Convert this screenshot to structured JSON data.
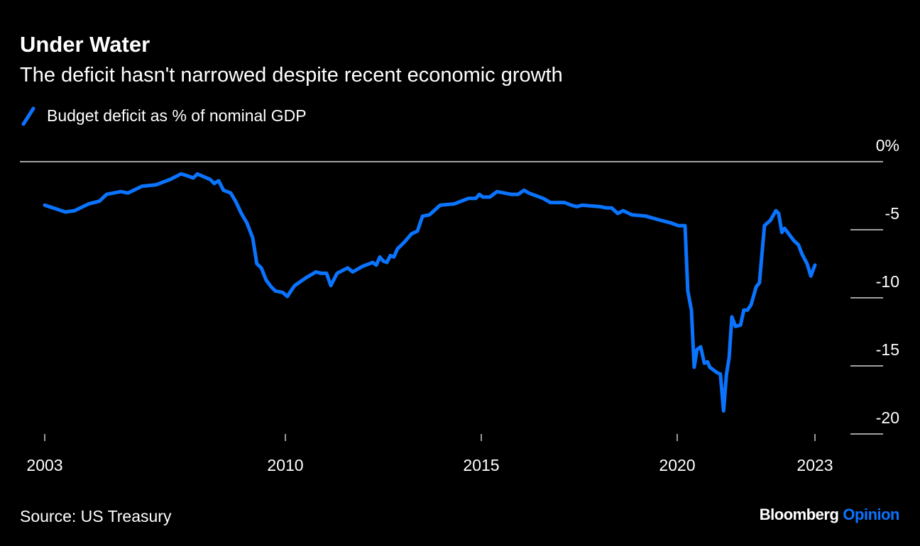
{
  "chart_data": {
    "type": "line",
    "title": "Under Water",
    "subtitle": "The deficit hasn't narrowed despite recent economic growth",
    "legend": [
      {
        "name": "Budget deficit as % of nominal GDP",
        "color": "#0a74ff"
      }
    ],
    "legend_placement": "top-left",
    "xlabel": "",
    "ylabel": "",
    "x_ticks": [
      2003,
      2010,
      2015,
      2020,
      2023
    ],
    "x_tick_labels": [
      "2003",
      "2010",
      "2015",
      "2020",
      "2023"
    ],
    "y_ticks": [
      0,
      -5,
      -10,
      -15,
      -20
    ],
    "y_tick_labels": [
      "0%",
      "-5",
      "-10",
      "-15",
      "-20"
    ],
    "ylim": [
      -20,
      0
    ],
    "xlim": [
      2003,
      2023
    ],
    "series": [
      {
        "name": "Budget deficit as % of nominal GDP",
        "color": "#0a74ff",
        "x": [
          2003.0,
          2003.25,
          2003.6,
          2003.87,
          2004.28,
          2004.59,
          2004.8,
          2005.21,
          2005.42,
          2005.83,
          2006.24,
          2006.65,
          2006.96,
          2007.11,
          2007.32,
          2007.44,
          2007.81,
          2007.93,
          2008.06,
          2008.2,
          2008.41,
          2008.55,
          2008.72,
          2008.88,
          2009.05,
          2009.17,
          2009.3,
          2009.44,
          2009.59,
          2009.71,
          2009.92,
          2010.05,
          2010.14,
          2010.24,
          2010.54,
          2010.78,
          2010.91,
          2011.05,
          2011.16,
          2011.32,
          2011.59,
          2011.72,
          2011.96,
          2012.23,
          2012.32,
          2012.41,
          2012.5,
          2012.59,
          2012.68,
          2012.77,
          2012.86,
          2013.04,
          2013.22,
          2013.37,
          2013.5,
          2013.68,
          2013.95,
          2014.31,
          2014.67,
          2014.86,
          2014.95,
          2015.04,
          2015.22,
          2015.4,
          2015.76,
          2015.94,
          2016.09,
          2016.21,
          2016.58,
          2016.76,
          2017.12,
          2017.3,
          2017.43,
          2017.57,
          2018.03,
          2018.21,
          2018.33,
          2018.48,
          2018.62,
          2018.84,
          2019.2,
          2019.57,
          2019.84,
          2020.02,
          2020.17,
          2020.23,
          2020.31,
          2020.37,
          2020.43,
          2020.51,
          2020.59,
          2020.66,
          2020.71,
          2020.87,
          2020.94,
          2021.01,
          2021.07,
          2021.13,
          2021.19,
          2021.27,
          2021.38,
          2021.45,
          2021.53,
          2021.61,
          2021.72,
          2021.79,
          2021.9,
          2022.03,
          2022.15,
          2022.21,
          2022.28,
          2022.34,
          2022.54,
          2022.64,
          2022.72,
          2022.83,
          2022.91,
          2023.0
        ],
        "values": [
          -3.2,
          -3.4,
          -3.7,
          -3.6,
          -3.1,
          -2.9,
          -2.4,
          -2.2,
          -2.3,
          -1.8,
          -1.7,
          -1.3,
          -0.9,
          -1.0,
          -1.2,
          -0.9,
          -1.3,
          -1.6,
          -1.4,
          -2.1,
          -2.3,
          -2.9,
          -3.8,
          -4.5,
          -5.6,
          -7.5,
          -7.8,
          -8.7,
          -9.2,
          -9.5,
          -9.6,
          -9.9,
          -9.5,
          -9.1,
          -8.5,
          -8.1,
          -8.2,
          -8.2,
          -9.1,
          -8.2,
          -7.8,
          -8.1,
          -7.7,
          -7.4,
          -7.6,
          -7.0,
          -7.3,
          -7.4,
          -6.9,
          -7.0,
          -6.4,
          -5.9,
          -5.3,
          -5.1,
          -4.0,
          -3.9,
          -3.2,
          -3.1,
          -2.7,
          -2.7,
          -2.4,
          -2.6,
          -2.6,
          -2.2,
          -2.4,
          -2.4,
          -2.1,
          -2.3,
          -2.7,
          -3.0,
          -3.0,
          -3.2,
          -3.3,
          -3.2,
          -3.3,
          -3.4,
          -3.4,
          -3.8,
          -3.6,
          -3.9,
          -4.0,
          -4.3,
          -4.5,
          -4.7,
          -4.7,
          -9.5,
          -10.9,
          -15.1,
          -13.8,
          -13.6,
          -14.8,
          -14.7,
          -15.1,
          -15.5,
          -15.6,
          -18.3,
          -15.7,
          -14.4,
          -11.4,
          -12.1,
          -12.0,
          -10.9,
          -10.9,
          -10.5,
          -9.2,
          -8.9,
          -4.7,
          -4.3,
          -3.6,
          -3.8,
          -5.2,
          -4.9,
          -5.8,
          -6.1,
          -6.8,
          -7.5,
          -8.4,
          -7.6
        ]
      }
    ],
    "source": "Source: US Treasury",
    "grid": false
  },
  "branding": {
    "brand": "Bloomberg",
    "section": "Opinion"
  }
}
